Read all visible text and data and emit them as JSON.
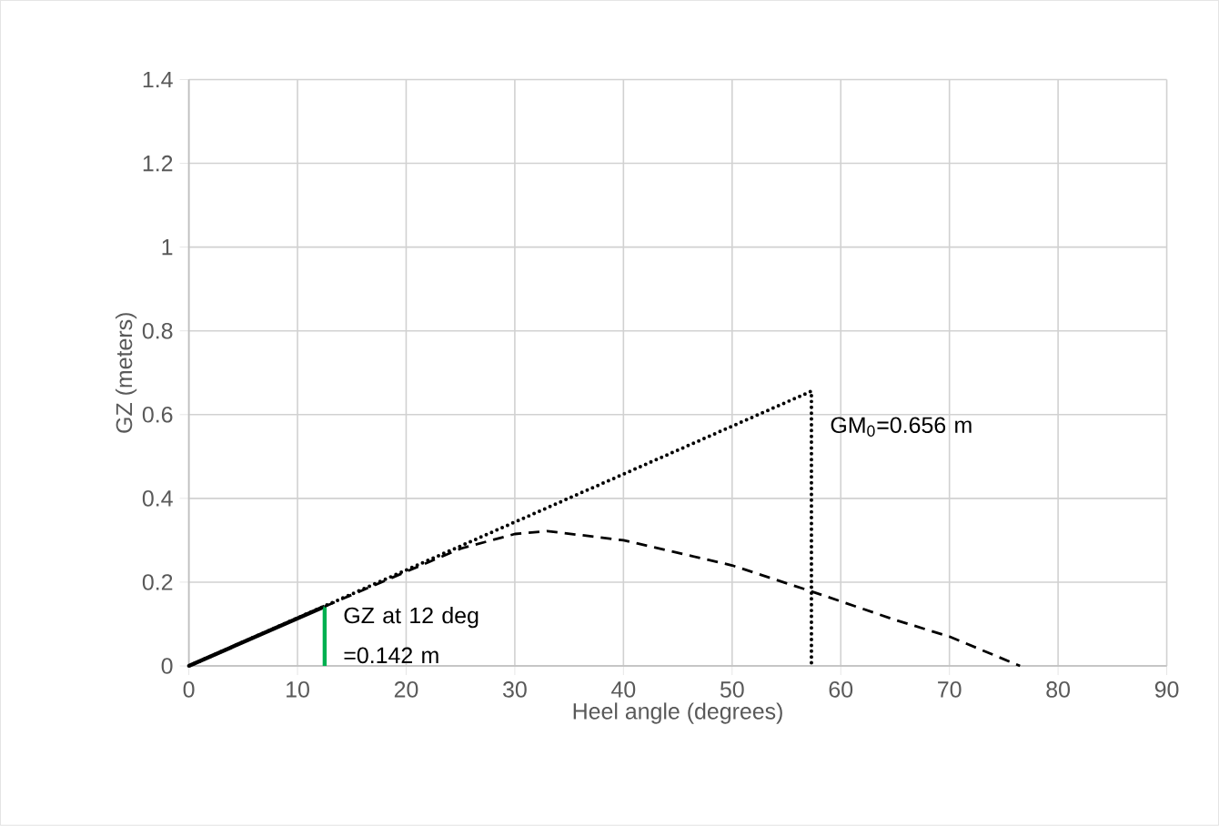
{
  "chart_data": {
    "type": "line",
    "xlabel": "Heel angle (degrees)",
    "ylabel": "GZ (meters)",
    "xlim": [
      0,
      90
    ],
    "xticks": [
      0,
      10,
      20,
      30,
      40,
      50,
      60,
      70,
      80,
      90
    ],
    "ylim": [
      0,
      1.4
    ],
    "yticks": [
      0,
      0.2,
      0.4,
      0.6,
      0.8,
      1,
      1.2,
      1.4
    ],
    "grid": true,
    "marker": "none",
    "series": [
      {
        "color": "#000000",
        "line_style": "solid",
        "x": [
          0,
          12.5
        ],
        "values": [
          0,
          0.142
        ]
      },
      {
        "color": "#00b050",
        "line_style": "solid",
        "x": [
          12.5,
          12.5
        ],
        "values": [
          0,
          0.142
        ]
      },
      {
        "color": "#000000",
        "line_style": "dashed",
        "x": [
          12.5,
          20,
          25,
          30,
          33,
          40,
          50,
          57.3,
          65,
          70,
          76.5
        ],
        "values": [
          0.142,
          0.225,
          0.28,
          0.315,
          0.322,
          0.3,
          0.24,
          0.178,
          0.11,
          0.07,
          0
        ]
      },
      {
        "color": "#000000",
        "line_style": "dotted",
        "x": [
          0,
          57.3,
          57.3
        ],
        "values": [
          0,
          0.656,
          0
        ]
      }
    ],
    "annotations": [
      {
        "text": "GZ at 12 deg =0.142 m",
        "x": 12.5,
        "y": 0.142
      },
      {
        "text": "GM$_{0}$=0.656 m",
        "x": 57.3,
        "y": 0.656
      }
    ]
  }
}
